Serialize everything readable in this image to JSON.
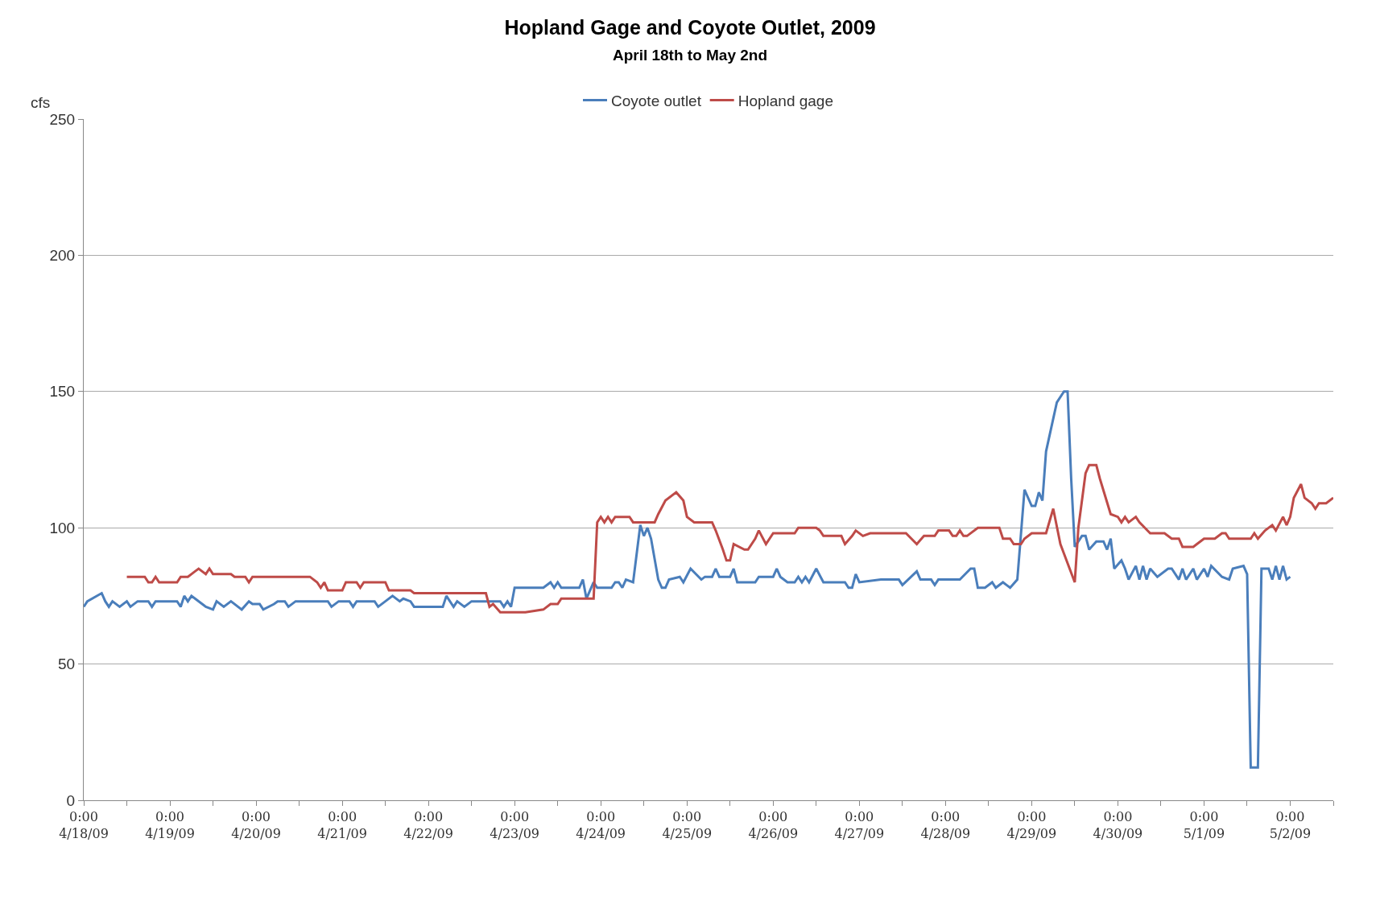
{
  "chart_data": {
    "type": "line",
    "title": "Hopland Gage and Coyote Outlet, 2009",
    "subtitle": "April 18th to May 2nd",
    "ylabel": "cfs",
    "legend": "top",
    "grid": "y",
    "line_style": "solid",
    "marker": "none",
    "xlim": [
      "2009-04-18T00:00",
      "2009-05-02T12:00"
    ],
    "xticks": [
      {
        "value": "2009-04-18T00:00",
        "label": "0:00\n4/18/09"
      },
      {
        "value": "2009-04-18T12:00",
        "label": null
      },
      {
        "value": "2009-04-19T00:00",
        "label": "0:00\n4/19/09"
      },
      {
        "value": "2009-04-19T12:00",
        "label": null
      },
      {
        "value": "2009-04-20T00:00",
        "label": "0:00\n4/20/09"
      },
      {
        "value": "2009-04-20T12:00",
        "label": null
      },
      {
        "value": "2009-04-21T00:00",
        "label": "0:00\n4/21/09"
      },
      {
        "value": "2009-04-21T12:00",
        "label": null
      },
      {
        "value": "2009-04-22T00:00",
        "label": "0:00\n4/22/09"
      },
      {
        "value": "2009-04-22T12:00",
        "label": null
      },
      {
        "value": "2009-04-23T00:00",
        "label": "0:00\n4/23/09"
      },
      {
        "value": "2009-04-23T12:00",
        "label": null
      },
      {
        "value": "2009-04-24T00:00",
        "label": "0:00\n4/24/09"
      },
      {
        "value": "2009-04-24T12:00",
        "label": null
      },
      {
        "value": "2009-04-25T00:00",
        "label": "0:00\n4/25/09"
      },
      {
        "value": "2009-04-25T12:00",
        "label": null
      },
      {
        "value": "2009-04-26T00:00",
        "label": "0:00\n4/26/09"
      },
      {
        "value": "2009-04-26T12:00",
        "label": null
      },
      {
        "value": "2009-04-27T00:00",
        "label": "0:00\n4/27/09"
      },
      {
        "value": "2009-04-27T12:00",
        "label": null
      },
      {
        "value": "2009-04-28T00:00",
        "label": "0:00\n4/28/09"
      },
      {
        "value": "2009-04-28T12:00",
        "label": null
      },
      {
        "value": "2009-04-29T00:00",
        "label": "0:00\n4/29/09"
      },
      {
        "value": "2009-04-29T12:00",
        "label": null
      },
      {
        "value": "2009-04-30T00:00",
        "label": "0:00\n4/30/09"
      },
      {
        "value": "2009-04-30T12:00",
        "label": null
      },
      {
        "value": "2009-05-01T00:00",
        "label": "0:00\n5/1/09"
      },
      {
        "value": "2009-05-01T12:00",
        "label": null
      },
      {
        "value": "2009-05-02T00:00",
        "label": "0:00\n5/2/09"
      },
      {
        "value": "2009-05-02T12:00",
        "label": null
      }
    ],
    "ylim": [
      0,
      250
    ],
    "yticks": [
      0,
      50,
      100,
      150,
      200,
      250
    ],
    "series": [
      {
        "name": "Coyote outlet",
        "color": "#4a7ebb",
        "x": [
          "2009-04-18T00:00",
          "2009-04-18T01:00",
          "2009-04-18T05:00",
          "2009-04-18T06:00",
          "2009-04-18T07:00",
          "2009-04-18T08:00",
          "2009-04-18T10:00",
          "2009-04-18T12:00",
          "2009-04-18T13:00",
          "2009-04-18T15:00",
          "2009-04-18T18:00",
          "2009-04-18T19:00",
          "2009-04-18T20:00",
          "2009-04-19T02:00",
          "2009-04-19T03:00",
          "2009-04-19T04:00",
          "2009-04-19T05:00",
          "2009-04-19T06:00",
          "2009-04-19T07:00",
          "2009-04-19T10:00",
          "2009-04-19T12:00",
          "2009-04-19T13:00",
          "2009-04-19T15:00",
          "2009-04-19T17:00",
          "2009-04-19T20:00",
          "2009-04-19T22:00",
          "2009-04-19T23:00",
          "2009-04-20T01:00",
          "2009-04-20T02:00",
          "2009-04-20T05:00",
          "2009-04-20T06:00",
          "2009-04-20T08:00",
          "2009-04-20T09:00",
          "2009-04-20T11:00",
          "2009-04-20T20:00",
          "2009-04-20T21:00",
          "2009-04-20T23:00",
          "2009-04-21T02:00",
          "2009-04-21T03:00",
          "2009-04-21T04:00",
          "2009-04-21T09:00",
          "2009-04-21T10:00",
          "2009-04-21T12:00",
          "2009-04-21T14:00",
          "2009-04-21T16:00",
          "2009-04-21T17:00",
          "2009-04-21T19:00",
          "2009-04-21T20:00",
          "2009-04-22T04:00",
          "2009-04-22T05:00",
          "2009-04-22T07:00",
          "2009-04-22T08:00",
          "2009-04-22T10:00",
          "2009-04-22T12:00",
          "2009-04-22T20:00",
          "2009-04-22T21:00",
          "2009-04-22T22:00",
          "2009-04-22T23:00",
          "2009-04-23T00:00",
          "2009-04-23T08:00",
          "2009-04-23T10:00",
          "2009-04-23T11:00",
          "2009-04-23T12:00",
          "2009-04-23T13:00",
          "2009-04-23T18:00",
          "2009-04-23T19:00",
          "2009-04-23T20:00",
          "2009-04-23T22:00",
          "2009-04-23T23:00",
          "2009-04-24T03:00",
          "2009-04-24T04:00",
          "2009-04-24T05:00",
          "2009-04-24T06:00",
          "2009-04-24T07:00",
          "2009-04-24T09:00",
          "2009-04-24T11:00",
          "2009-04-24T12:00",
          "2009-04-24T13:00",
          "2009-04-24T14:00",
          "2009-04-24T16:00",
          "2009-04-24T17:00",
          "2009-04-24T18:00",
          "2009-04-24T19:00",
          "2009-04-24T22:00",
          "2009-04-24T23:00",
          "2009-04-25T01:00",
          "2009-04-25T04:00",
          "2009-04-25T05:00",
          "2009-04-25T07:00",
          "2009-04-25T08:00",
          "2009-04-25T09:00",
          "2009-04-25T12:00",
          "2009-04-25T13:00",
          "2009-04-25T14:00",
          "2009-04-25T19:00",
          "2009-04-25T20:00",
          "2009-04-26T00:00",
          "2009-04-26T01:00",
          "2009-04-26T02:00",
          "2009-04-26T04:00",
          "2009-04-26T06:00",
          "2009-04-26T07:00",
          "2009-04-26T08:00",
          "2009-04-26T09:00",
          "2009-04-26T10:00",
          "2009-04-26T12:00",
          "2009-04-26T14:00",
          "2009-04-26T20:00",
          "2009-04-26T21:00",
          "2009-04-26T22:00",
          "2009-04-26T23:00",
          "2009-04-27T00:00",
          "2009-04-27T06:00",
          "2009-04-27T11:00",
          "2009-04-27T12:00",
          "2009-04-27T16:00",
          "2009-04-27T17:00",
          "2009-04-27T20:00",
          "2009-04-27T21:00",
          "2009-04-27T22:00",
          "2009-04-28T04:00",
          "2009-04-28T07:00",
          "2009-04-28T08:00",
          "2009-04-28T09:00",
          "2009-04-28T11:00",
          "2009-04-28T13:00",
          "2009-04-28T14:00",
          "2009-04-28T16:00",
          "2009-04-28T17:00",
          "2009-04-28T18:00",
          "2009-04-28T20:00",
          "2009-04-28T22:00",
          "2009-04-29T00:00",
          "2009-04-29T01:00",
          "2009-04-29T02:00",
          "2009-04-29T03:00",
          "2009-04-29T04:00",
          "2009-04-29T06:00",
          "2009-04-29T07:00",
          "2009-04-29T09:00",
          "2009-04-29T10:00",
          "2009-04-29T11:00",
          "2009-04-29T12:00",
          "2009-04-29T14:00",
          "2009-04-29T15:00",
          "2009-04-29T16:00",
          "2009-04-29T18:00",
          "2009-04-29T20:00",
          "2009-04-29T21:00",
          "2009-04-29T22:00",
          "2009-04-29T23:00",
          "2009-04-30T01:00",
          "2009-04-30T02:00",
          "2009-04-30T03:00",
          "2009-04-30T05:00",
          "2009-04-30T06:00",
          "2009-04-30T07:00",
          "2009-04-30T08:00",
          "2009-04-30T09:00",
          "2009-04-30T11:00",
          "2009-04-30T14:00",
          "2009-04-30T15:00",
          "2009-04-30T17:00",
          "2009-04-30T18:00",
          "2009-04-30T19:00",
          "2009-04-30T21:00",
          "2009-04-30T22:00",
          "2009-05-01T00:00",
          "2009-05-01T01:00",
          "2009-05-01T02:00",
          "2009-05-01T05:00",
          "2009-05-01T07:00",
          "2009-05-01T08:00",
          "2009-05-01T11:00",
          "2009-05-01T12:00",
          "2009-05-01T13:00",
          "2009-05-01T15:00",
          "2009-05-01T16:00",
          "2009-05-01T18:00",
          "2009-05-01T19:00",
          "2009-05-01T20:00",
          "2009-05-01T21:00",
          "2009-05-01T22:00",
          "2009-05-01T23:00",
          "2009-05-02T00:00"
        ],
        "values": [
          71,
          73,
          76,
          73,
          71,
          73,
          71,
          73,
          71,
          73,
          73,
          71,
          73,
          73,
          71,
          75,
          73,
          75,
          74,
          71,
          70,
          73,
          71,
          73,
          70,
          73,
          72,
          72,
          70,
          72,
          73,
          73,
          71,
          73,
          73,
          71,
          73,
          73,
          71,
          73,
          73,
          71,
          73,
          75,
          73,
          74,
          73,
          71,
          71,
          75,
          71,
          73,
          71,
          73,
          73,
          71,
          73,
          71,
          78,
          78,
          80,
          78,
          80,
          78,
          78,
          81,
          74,
          80,
          78,
          78,
          80,
          80,
          78,
          81,
          80,
          101,
          97,
          100,
          96,
          81,
          78,
          78,
          81,
          82,
          80,
          85,
          81,
          82,
          82,
          85,
          82,
          82,
          85,
          80,
          80,
          82,
          82,
          85,
          82,
          80,
          80,
          82,
          80,
          82,
          80,
          85,
          80,
          80,
          78,
          78,
          83,
          80,
          81,
          81,
          79,
          84,
          81,
          81,
          79,
          81,
          81,
          85,
          85,
          78,
          78,
          80,
          78,
          80,
          79,
          78,
          81,
          114,
          108,
          108,
          113,
          110,
          128,
          140,
          146,
          150,
          150,
          118,
          93,
          97,
          97,
          92,
          95,
          95,
          92,
          96,
          85,
          88,
          85,
          81,
          86,
          81,
          86,
          81,
          85,
          82,
          85,
          85,
          81,
          85,
          81,
          85,
          81,
          85,
          82,
          86,
          82,
          81,
          85,
          86,
          83,
          12,
          12,
          85,
          85,
          81,
          86,
          81,
          86,
          81,
          82
        ]
      },
      {
        "name": "Hopland gage",
        "color": "#be4b48",
        "x": [
          "2009-04-18T12:00",
          "2009-04-18T17:00",
          "2009-04-18T18:00",
          "2009-04-18T19:00",
          "2009-04-18T20:00",
          "2009-04-18T21:00",
          "2009-04-19T02:00",
          "2009-04-19T03:00",
          "2009-04-19T05:00",
          "2009-04-19T07:00",
          "2009-04-19T08:00",
          "2009-04-19T10:00",
          "2009-04-19T11:00",
          "2009-04-19T12:00",
          "2009-04-19T17:00",
          "2009-04-19T18:00",
          "2009-04-19T21:00",
          "2009-04-19T22:00",
          "2009-04-19T23:00",
          "2009-04-20T15:00",
          "2009-04-20T17:00",
          "2009-04-20T18:00",
          "2009-04-20T19:00",
          "2009-04-20T20:00",
          "2009-04-21T00:00",
          "2009-04-21T01:00",
          "2009-04-21T04:00",
          "2009-04-21T05:00",
          "2009-04-21T06:00",
          "2009-04-21T12:00",
          "2009-04-21T13:00",
          "2009-04-21T19:00",
          "2009-04-21T20:00",
          "2009-04-22T16:00",
          "2009-04-22T17:00",
          "2009-04-22T18:00",
          "2009-04-22T20:00",
          "2009-04-23T03:00",
          "2009-04-23T08:00",
          "2009-04-23T10:00",
          "2009-04-23T12:00",
          "2009-04-23T13:00",
          "2009-04-23T22:00",
          "2009-04-23T23:00",
          "2009-04-24T00:00",
          "2009-04-24T01:00",
          "2009-04-24T02:00",
          "2009-04-24T03:00",
          "2009-04-24T04:00",
          "2009-04-24T08:00",
          "2009-04-24T09:00",
          "2009-04-24T15:00",
          "2009-04-24T16:00",
          "2009-04-24T18:00",
          "2009-04-24T21:00",
          "2009-04-24T23:00",
          "2009-04-25T00:00",
          "2009-04-25T02:00",
          "2009-04-25T07:00",
          "2009-04-25T08:00",
          "2009-04-25T10:00",
          "2009-04-25T11:00",
          "2009-04-25T12:00",
          "2009-04-25T13:00",
          "2009-04-25T16:00",
          "2009-04-25T17:00",
          "2009-04-25T19:00",
          "2009-04-25T20:00",
          "2009-04-25T22:00",
          "2009-04-26T00:00",
          "2009-04-26T06:00",
          "2009-04-26T07:00",
          "2009-04-26T12:00",
          "2009-04-26T13:00",
          "2009-04-26T14:00",
          "2009-04-26T19:00",
          "2009-04-26T20:00",
          "2009-04-26T22:00",
          "2009-04-26T23:00",
          "2009-04-27T01:00",
          "2009-04-27T03:00",
          "2009-04-27T13:00",
          "2009-04-27T16:00",
          "2009-04-27T18:00",
          "2009-04-27T21:00",
          "2009-04-27T22:00",
          "2009-04-28T01:00",
          "2009-04-28T02:00",
          "2009-04-28T03:00",
          "2009-04-28T04:00",
          "2009-04-28T05:00",
          "2009-04-28T06:00",
          "2009-04-28T09:00",
          "2009-04-28T15:00",
          "2009-04-28T16:00",
          "2009-04-28T18:00",
          "2009-04-28T19:00",
          "2009-04-28T21:00",
          "2009-04-28T22:00",
          "2009-04-29T00:00",
          "2009-04-29T04:00",
          "2009-04-29T06:00",
          "2009-04-29T08:00",
          "2009-04-29T12:00",
          "2009-04-29T13:00",
          "2009-04-29T15:00",
          "2009-04-29T16:00",
          "2009-04-29T18:00",
          "2009-04-29T19:00",
          "2009-04-29T22:00",
          "2009-04-30T00:00",
          "2009-04-30T01:00",
          "2009-04-30T02:00",
          "2009-04-30T03:00",
          "2009-04-30T05:00",
          "2009-04-30T06:00",
          "2009-04-30T09:00",
          "2009-04-30T13:00",
          "2009-04-30T15:00",
          "2009-04-30T17:00",
          "2009-04-30T18:00",
          "2009-04-30T21:00",
          "2009-04-30T22:00",
          "2009-05-01T00:00",
          "2009-05-01T03:00",
          "2009-05-01T05:00",
          "2009-05-01T06:00",
          "2009-05-01T07:00",
          "2009-05-01T13:00",
          "2009-05-01T14:00",
          "2009-05-01T15:00",
          "2009-05-01T17:00",
          "2009-05-01T19:00",
          "2009-05-01T20:00",
          "2009-05-01T22:00",
          "2009-05-01T23:00",
          "2009-05-02T00:00",
          "2009-05-02T01:00",
          "2009-05-02T03:00",
          "2009-05-02T04:00",
          "2009-05-02T06:00",
          "2009-05-02T07:00",
          "2009-05-02T08:00",
          "2009-05-02T10:00",
          "2009-05-02T12:00"
        ],
        "values": [
          82,
          82,
          80,
          80,
          82,
          80,
          80,
          82,
          82,
          84,
          85,
          83,
          85,
          83,
          83,
          82,
          82,
          80,
          82,
          82,
          80,
          78,
          80,
          77,
          77,
          80,
          80,
          78,
          80,
          80,
          77,
          77,
          76,
          76,
          71,
          72,
          69,
          69,
          70,
          72,
          72,
          74,
          74,
          102,
          104,
          102,
          104,
          102,
          104,
          104,
          102,
          102,
          105,
          110,
          113,
          110,
          104,
          102,
          102,
          99,
          92,
          88,
          88,
          94,
          92,
          92,
          96,
          99,
          94,
          98,
          98,
          100,
          100,
          99,
          97,
          97,
          94,
          97,
          99,
          97,
          98,
          98,
          94,
          97,
          97,
          99,
          99,
          97,
          97,
          99,
          97,
          97,
          100,
          100,
          96,
          96,
          94,
          94,
          96,
          98,
          98,
          107,
          94,
          80,
          100,
          120,
          123,
          123,
          118,
          105,
          104,
          102,
          104,
          102,
          104,
          102,
          98,
          98,
          96,
          96,
          93,
          93,
          94,
          96,
          96,
          98,
          98,
          96,
          96,
          98,
          96,
          99,
          101,
          99,
          104,
          101,
          104,
          111,
          116,
          111,
          109,
          107,
          109,
          109,
          111
        ]
      }
    ]
  }
}
